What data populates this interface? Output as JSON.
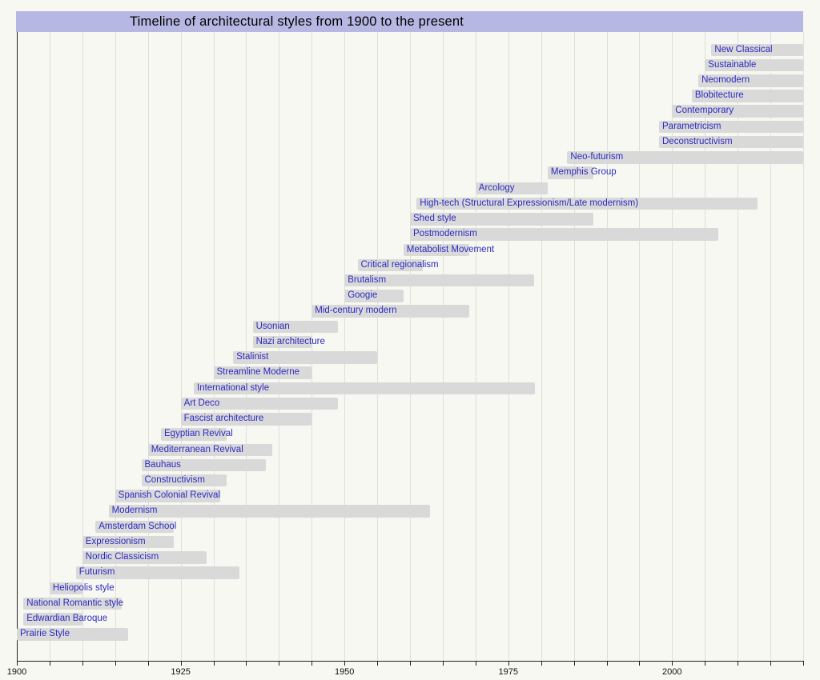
{
  "title": "Timeline of architectural styles from 1900 to the present",
  "colors": {
    "page_background": "#f8f8f2",
    "title_background": "#b7b7e4",
    "bar_fill": "#d9d9d9",
    "label_text": "#2b2bc0",
    "gridline": "#dededa",
    "axis": "#222222"
  },
  "chart_data": {
    "type": "bar",
    "variant": "horizontal-timeline",
    "title": "Timeline of architectural styles from 1900 to the present",
    "xlabel": "",
    "ylabel": "",
    "grid": true,
    "axis": {
      "min": 1900,
      "max": 2020,
      "minor_tick_interval": 5,
      "label_years": [
        "1900",
        "1925",
        "1950",
        "1975",
        "2000"
      ]
    },
    "series": [
      {
        "label": "New Classical",
        "start": 2006,
        "end": 2020
      },
      {
        "label": "Sustainable",
        "start": 2005,
        "end": 2020
      },
      {
        "label": "Neomodern",
        "start": 2004,
        "end": 2020
      },
      {
        "label": "Blobitecture",
        "start": 2003,
        "end": 2020
      },
      {
        "label": "Contemporary",
        "start": 2000,
        "end": 2020
      },
      {
        "label": "Parametricism",
        "start": 1998,
        "end": 2020
      },
      {
        "label": "Deconstructivism",
        "start": 1998,
        "end": 2020
      },
      {
        "label": "Neo-futurism",
        "start": 1984,
        "end": 2020
      },
      {
        "label": "Memphis Group",
        "start": 1981,
        "end": 1988
      },
      {
        "label": "Arcology",
        "start": 1970,
        "end": 1981
      },
      {
        "label": "High-tech (Structural Expressionism/Late modernism)",
        "start": 1961,
        "end": 2013
      },
      {
        "label": "Shed style",
        "start": 1960,
        "end": 1988
      },
      {
        "label": "Postmodernism",
        "start": 1960,
        "end": 2007
      },
      {
        "label": "Metabolist Movement",
        "start": 1959,
        "end": 1969
      },
      {
        "label": "Critical regionalism",
        "start": 1952,
        "end": 1962
      },
      {
        "label": "Brutalism",
        "start": 1950,
        "end": 1979
      },
      {
        "label": "Googie",
        "start": 1950,
        "end": 1959
      },
      {
        "label": "Mid-century modern",
        "start": 1945,
        "end": 1969
      },
      {
        "label": "Usonian",
        "start": 1936,
        "end": 1949
      },
      {
        "label": "Nazi architecture",
        "start": 1936,
        "end": 1945
      },
      {
        "label": "Stalinist",
        "start": 1933,
        "end": 1955
      },
      {
        "label": "Streamline Moderne",
        "start": 1930,
        "end": 1945
      },
      {
        "label": "International style",
        "start": 1927,
        "end": 1979
      },
      {
        "label": "Art Deco",
        "start": 1925,
        "end": 1949
      },
      {
        "label": "Fascist architecture",
        "start": 1925,
        "end": 1945
      },
      {
        "label": "Egyptian Revival",
        "start": 1922,
        "end": 1932
      },
      {
        "label": "Mediterranean Revival",
        "start": 1920,
        "end": 1939
      },
      {
        "label": "Bauhaus",
        "start": 1919,
        "end": 1938
      },
      {
        "label": "Constructivism",
        "start": 1919,
        "end": 1932
      },
      {
        "label": "Spanish Colonial Revival",
        "start": 1915,
        "end": 1931
      },
      {
        "label": "Modernism",
        "start": 1914,
        "end": 1963
      },
      {
        "label": "Amsterdam School",
        "start": 1912,
        "end": 1924
      },
      {
        "label": "Expressionism",
        "start": 1910,
        "end": 1924
      },
      {
        "label": "Nordic Classicism",
        "start": 1910,
        "end": 1929
      },
      {
        "label": "Futurism",
        "start": 1909,
        "end": 1934
      },
      {
        "label": "Heliopolis style",
        "start": 1905,
        "end": 1910
      },
      {
        "label": "National Romantic style",
        "start": 1901,
        "end": 1916
      },
      {
        "label": "Edwardian Baroque",
        "start": 1901,
        "end": 1910
      },
      {
        "label": "Prairie Style",
        "start": 1900,
        "end": 1917
      }
    ]
  }
}
